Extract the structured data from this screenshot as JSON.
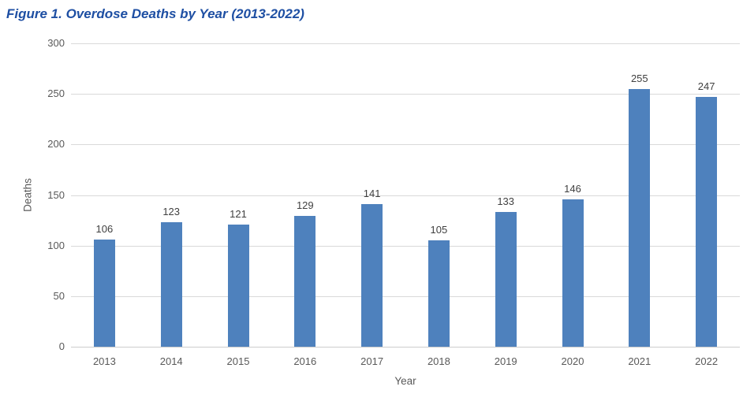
{
  "figure": {
    "caption": "Figure 1. Overdose Deaths by Year (2013-2022)",
    "caption_color": "#1e4fa3"
  },
  "chart_data": {
    "type": "bar",
    "title": "Figure 1. Overdose Deaths by Year (2013-2022)",
    "categories": [
      "2013",
      "2014",
      "2015",
      "2016",
      "2017",
      "2018",
      "2019",
      "2020",
      "2021",
      "2022"
    ],
    "values": [
      106,
      123,
      121,
      129,
      141,
      105,
      133,
      146,
      255,
      247
    ],
    "xlabel": "Year",
    "ylabel": "Deaths",
    "ylim": [
      0,
      300
    ],
    "yticks": [
      0,
      50,
      100,
      150,
      200,
      250,
      300
    ],
    "grid": true,
    "legend": "none",
    "show_value_labels": true,
    "bar_color": "#4e81bd",
    "gridline_color": "#d9d9d9",
    "axis_line_color": "#cdcdcd",
    "tick_label_color": "#595959",
    "value_label_color": "#404040"
  }
}
